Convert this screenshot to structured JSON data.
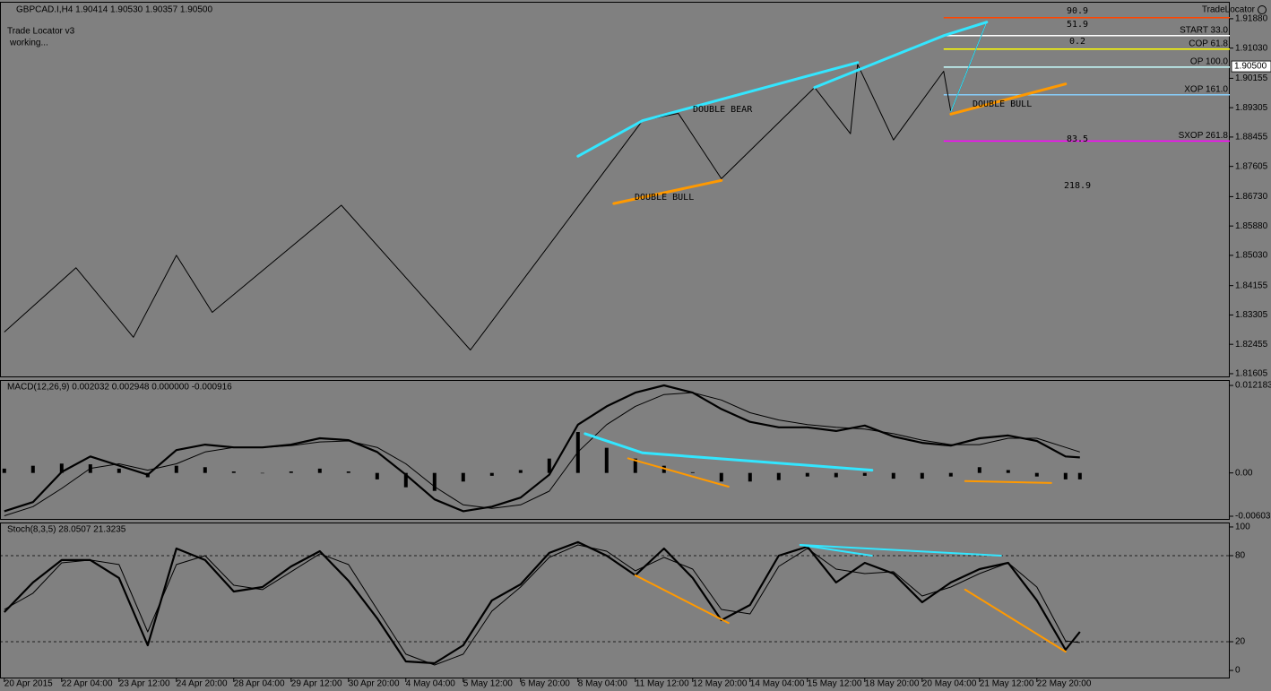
{
  "chart_data": [
    {
      "type": "line",
      "title": "GBPCAD.I,H4 1.90414 1.90530 1.90357 1.90500",
      "indicator_label": "Trade Locator v3",
      "status": "working...",
      "brand": "TradeLocator",
      "xlim": [
        -0.6,
        170.9
      ],
      "ylim": [
        1.815,
        1.9237
      ],
      "yticks": [
        {
          "value": 1.9188,
          "label": "1.91880"
        },
        {
          "value": 1.9103,
          "label": "1.91030"
        },
        1.90155,
        {
          "value": 1.89305,
          "label": "1.89305"
        },
        {
          "value": 1.88455,
          "label": "1.88455"
        },
        {
          "value": 1.87605,
          "label": "1.87605"
        },
        {
          "value": 1.8673,
          "label": "1.86730"
        },
        {
          "value": 1.8588,
          "label": "1.85880"
        },
        {
          "value": 1.8503,
          "label": "1.85030"
        },
        1.84155,
        {
          "value": 1.83305,
          "label": "1.83305"
        },
        {
          "value": 1.82455,
          "label": "1.82455"
        },
        {
          "value": 1.81605,
          "label": "1.81605"
        }
      ],
      "current_price": {
        "value": 1.905,
        "label": "1.90500"
      },
      "series": [
        {
          "color": "#000000",
          "width": 1,
          "x": [
            0,
            10,
            18,
            24,
            29,
            47,
            65,
            89,
            94,
            100,
            113,
            118,
            119,
            124,
            131,
            132,
            137
          ],
          "values": [
            1.8281,
            1.8467,
            1.8266,
            1.8503,
            1.8338,
            1.8648,
            1.8229,
            1.8893,
            1.8914,
            1.8725,
            1.8989,
            1.8855,
            1.9056,
            1.8837,
            1.9036,
            1.8919,
            1.9178
          ]
        }
      ],
      "level_label_color": "#ffff00",
      "levels_start": 131,
      "levels": [
        {
          "value": 1.9191,
          "color": "#ff4500"
        },
        {
          "value": 1.9139,
          "color": "#ffffff",
          "label": "START 33.0"
        },
        {
          "value": 1.91,
          "color": "#ffff00",
          "label": "COP 61.8"
        },
        {
          "value": 1.9048,
          "color": "#c8ffff",
          "label": "OP 100.0"
        },
        {
          "value": 1.8968,
          "color": "#87cefa",
          "label": "XOP 161.0"
        },
        {
          "value": 1.8834,
          "color": "#ff00ff",
          "label": "SXOP 261.8"
        }
      ],
      "ratios": [
        {
          "text": "90.9",
          "color": "#ffffff"
        },
        {
          "text": "51.9",
          "color": "#ffff80"
        },
        {
          "text": "0.2",
          "color": "#c8ffff"
        },
        {
          "text": "83.5",
          "color": "#87cefa"
        },
        {
          "text": "218.9",
          "color": "#cc33cc"
        }
      ],
      "patterns": [
        {
          "text": "DOUBLE BEAR",
          "color": "#ffff00"
        },
        {
          "text": "DOUBLE BULL",
          "color": "#ffff00"
        },
        {
          "text": "DOUBLE BULL",
          "color": "#ffff00"
        }
      ],
      "trendlines": [
        {
          "color": "#33e6ff",
          "width": 3,
          "points": [
            [
              80,
              1.879
            ],
            [
              89,
              1.8893
            ],
            [
              119,
              1.9061
            ]
          ]
        },
        {
          "color": "#33e6ff",
          "width": 3,
          "points": [
            [
              113,
              1.8989
            ],
            [
              131,
              1.9139
            ],
            [
              137,
              1.9178
            ]
          ]
        },
        {
          "color": "#33e6ff",
          "width": 1,
          "points": [
            [
              132,
              1.8919
            ],
            [
              137,
              1.9178
            ]
          ]
        },
        {
          "color": "#ff9900",
          "width": 3,
          "points": [
            [
              85,
              1.8653
            ],
            [
              100,
              1.872
            ]
          ]
        },
        {
          "color": "#ff9900",
          "width": 3,
          "points": [
            [
              132,
              1.8912
            ],
            [
              148,
              1.8999
            ]
          ]
        }
      ]
    },
    {
      "type": "line",
      "title": "MACD(12,26,9) 0.002032 0.002948 0.000000 -0.000916",
      "xlim": [
        -0.6,
        170.9
      ],
      "ylim": [
        -0.00653,
        0.01294
      ],
      "yticks": [
        0.012183,
        {
          "value": 0,
          "label": "0.00"
        },
        -0.006031
      ],
      "series": [
        {
          "type": "bar",
          "color": "#000000",
          "x": [
            0,
            4,
            8,
            12,
            16,
            20,
            24,
            28,
            32,
            36,
            40,
            44,
            48,
            52,
            56,
            60,
            64,
            68,
            72,
            76,
            80,
            84,
            88,
            92,
            96,
            100,
            104,
            108,
            112,
            116,
            120,
            124,
            128,
            132,
            136,
            140,
            144,
            148,
            150
          ],
          "values": [
            0.0006,
            0.001,
            0.0013,
            0.0012,
            0.0006,
            -0.0006,
            0.001,
            0.0008,
            0.0002,
            0,
            0.0002,
            0.0006,
            0.0002,
            -0.0009,
            -0.002,
            -0.0025,
            -0.0012,
            -0.0004,
            0.0004,
            0.002,
            0.0057,
            0.0035,
            0.002,
            0.001,
            0.0001,
            -0.0012,
            -0.0012,
            -0.001,
            -0.0005,
            -0.0006,
            -0.0004,
            -0.0008,
            -0.0008,
            -0.0005,
            0.0008,
            0.0004,
            -0.0005,
            -0.0009,
            -0.0009
          ]
        },
        {
          "color": "#000000",
          "width": 2.2,
          "x": [
            0,
            4,
            8,
            12,
            16,
            20,
            24,
            28,
            32,
            36,
            40,
            44,
            48,
            52,
            56,
            60,
            64,
            68,
            72,
            76,
            80,
            84,
            88,
            92,
            96,
            100,
            104,
            108,
            112,
            116,
            120,
            124,
            128,
            132,
            136,
            140,
            144,
            148,
            150
          ],
          "values": [
            -0.00533,
            -0.00406,
            0.00013,
            0.00229,
            0.00102,
            -0.00025,
            0.00318,
            0.00394,
            0.00356,
            0.00356,
            0.00394,
            0.00483,
            0.00457,
            0.00292,
            -0.00025,
            -0.00368,
            -0.00533,
            -0.0047,
            -0.00343,
            -0.00025,
            0.00673,
            0.00927,
            0.01118,
            0.01219,
            0.01118,
            0.00889,
            0.00711,
            0.00635,
            0.00635,
            0.00584,
            0.0066,
            0.00508,
            0.00419,
            0.00381,
            0.00483,
            0.00521,
            0.00445,
            0.00229,
            0.00216
          ]
        },
        {
          "color": "#000000",
          "width": 1,
          "x": [
            0,
            4,
            8,
            12,
            16,
            20,
            24,
            28,
            32,
            36,
            40,
            44,
            48,
            52,
            56,
            60,
            64,
            68,
            72,
            76,
            80,
            84,
            88,
            92,
            96,
            100,
            104,
            108,
            112,
            116,
            120,
            124,
            128,
            132,
            136,
            140,
            144,
            148,
            150
          ],
          "values": [
            -0.00597,
            -0.0047,
            -0.00216,
            0.00064,
            0.00127,
            0.00038,
            0.00127,
            0.00292,
            0.00356,
            0.00356,
            0.00381,
            0.00432,
            0.00445,
            0.00356,
            0.00127,
            -0.00191,
            -0.00445,
            -0.00495,
            -0.00445,
            -0.00254,
            0.00292,
            0.00673,
            0.00927,
            0.01092,
            0.01118,
            0.01016,
            0.00838,
            0.00737,
            0.00673,
            0.00635,
            0.0061,
            0.00546,
            0.00457,
            0.00394,
            0.00394,
            0.00483,
            0.00483,
            0.00356,
            0.00292
          ]
        }
      ],
      "trendlines": [
        {
          "color": "#33e6ff",
          "width": 3,
          "points": [
            [
              81,
              0.00546
            ],
            [
              89,
              0.00279
            ],
            [
              121,
              0.00038
            ]
          ]
        },
        {
          "color": "#ff9900",
          "width": 2,
          "points": [
            [
              87,
              0.00203
            ],
            [
              101,
              -0.00191
            ]
          ]
        },
        {
          "color": "#ff9900",
          "width": 2,
          "points": [
            [
              134,
              -0.00114
            ],
            [
              146,
              -0.0014
            ]
          ]
        }
      ]
    },
    {
      "type": "line",
      "title": "Stoch(8,3,5) 28.0507 21.3235",
      "xlim": [
        -0.6,
        170.9
      ],
      "ylim": [
        -5.6,
        103.1
      ],
      "yticks": [
        0,
        20,
        80,
        100
      ],
      "hlines": [
        20,
        80
      ],
      "xticks": [
        {
          "value": 0,
          "label": "20 Apr 2015"
        },
        {
          "value": 8,
          "label": "22 Apr 04:00"
        },
        {
          "value": 16,
          "label": "23 Apr 12:00"
        },
        {
          "value": 24,
          "label": "24 Apr 20:00"
        },
        {
          "value": 32,
          "label": "28 Apr 04:00"
        },
        {
          "value": 40,
          "label": "29 Apr 12:00"
        },
        {
          "value": 48,
          "label": "30 Apr 20:00"
        },
        {
          "value": 56,
          "label": "4 May 04:00"
        },
        {
          "value": 64,
          "label": "5 May 12:00"
        },
        {
          "value": 72,
          "label": "6 May 20:00"
        },
        {
          "value": 80,
          "label": "8 May 04:00"
        },
        {
          "value": 88,
          "label": "11 May 12:00"
        },
        {
          "value": 96,
          "label": "12 May 20:00"
        },
        {
          "value": 104,
          "label": "14 May 04:00"
        },
        {
          "value": 112,
          "label": "15 May 12:00"
        },
        {
          "value": 120,
          "label": "18 May 20:00"
        },
        {
          "value": 128,
          "label": "20 May 04:00"
        },
        {
          "value": 136,
          "label": "21 May 12:00"
        },
        {
          "value": 144,
          "label": "22 May 20:00"
        }
      ],
      "series": [
        {
          "color": "#000000",
          "width": 2.2,
          "x": [
            0,
            4,
            8,
            12,
            16,
            20,
            24,
            28,
            32,
            36,
            40,
            44,
            48,
            52,
            56,
            60,
            64,
            68,
            72,
            76,
            80,
            84,
            88,
            92,
            96,
            100,
            104,
            108,
            112,
            116,
            120,
            124,
            128,
            132,
            136,
            140,
            144,
            148,
            150
          ],
          "values": [
            40.6,
            61.3,
            76.9,
            76.9,
            64.4,
            17.5,
            85,
            76.9,
            55,
            58.1,
            72.5,
            83.1,
            62.5,
            36.3,
            6.3,
            5,
            17.5,
            48.8,
            60,
            81.9,
            89.4,
            80,
            66.3,
            85,
            64.4,
            35,
            45.6,
            80,
            86.3,
            61.3,
            75,
            67.5,
            47.5,
            61.3,
            70.6,
            75,
            48.8,
            14.4,
            26.9
          ]
        },
        {
          "color": "#000000",
          "width": 1,
          "x": [
            0,
            4,
            8,
            12,
            16,
            20,
            24,
            28,
            32,
            36,
            40,
            44,
            48,
            52,
            56,
            60,
            64,
            68,
            72,
            76,
            80,
            84,
            88,
            92,
            96,
            100,
            104,
            108,
            112,
            116,
            120,
            124,
            128,
            132,
            136,
            140,
            144,
            148,
            150
          ],
          "values": [
            42.5,
            53.8,
            75,
            76.9,
            73.8,
            26.9,
            73.8,
            80,
            59.4,
            56.3,
            68.8,
            81.3,
            73.8,
            42.5,
            11.3,
            3.8,
            11.3,
            41.3,
            58.1,
            78.8,
            87.5,
            83.1,
            69.4,
            78.8,
            70.6,
            42.5,
            39.4,
            72.5,
            85,
            70.6,
            67.5,
            68.8,
            51.9,
            58.1,
            67.5,
            75,
            58.1,
            20.6,
            19.4
          ]
        }
      ],
      "trendlines": [
        {
          "color": "#33e6ff",
          "width": 2,
          "points": [
            [
              111,
              87.5
            ],
            [
              121,
              80
            ]
          ]
        },
        {
          "color": "#33e6ff",
          "width": 2,
          "points": [
            [
              111,
              87.5
            ],
            [
              139,
              80
            ]
          ]
        },
        {
          "color": "#ff9900",
          "width": 2,
          "points": [
            [
              88,
              66.3
            ],
            [
              101,
              33.1
            ]
          ]
        },
        {
          "color": "#ff9900",
          "width": 2,
          "points": [
            [
              134,
              56.3
            ],
            [
              148,
              13.1
            ]
          ]
        }
      ]
    }
  ]
}
